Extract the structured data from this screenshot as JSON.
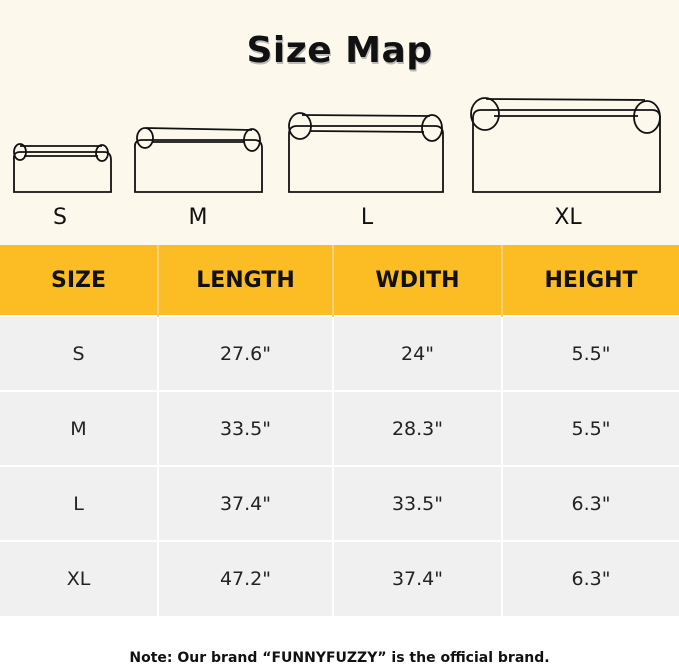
{
  "title": "Size Map",
  "sizes": [
    "S",
    "M",
    "L",
    "XL"
  ],
  "table": {
    "headers": [
      "SIZE",
      "LENGTH",
      "WDITH",
      "HEIGHT"
    ],
    "rows": [
      [
        "S",
        "27.6\"",
        "24\"",
        "5.5\""
      ],
      [
        "M",
        "33.5\"",
        "28.3\"",
        "5.5\""
      ],
      [
        "L",
        "37.4\"",
        "33.5\"",
        "6.3\""
      ],
      [
        "XL",
        "47.2\"",
        "37.4\"",
        "6.3\""
      ]
    ]
  },
  "note": "Note: Our brand “FUNNYFUZZY” is the official brand.",
  "colors": {
    "header": "#fcbd24",
    "background": "#fcf8ec",
    "row": "#f0f0f0"
  }
}
